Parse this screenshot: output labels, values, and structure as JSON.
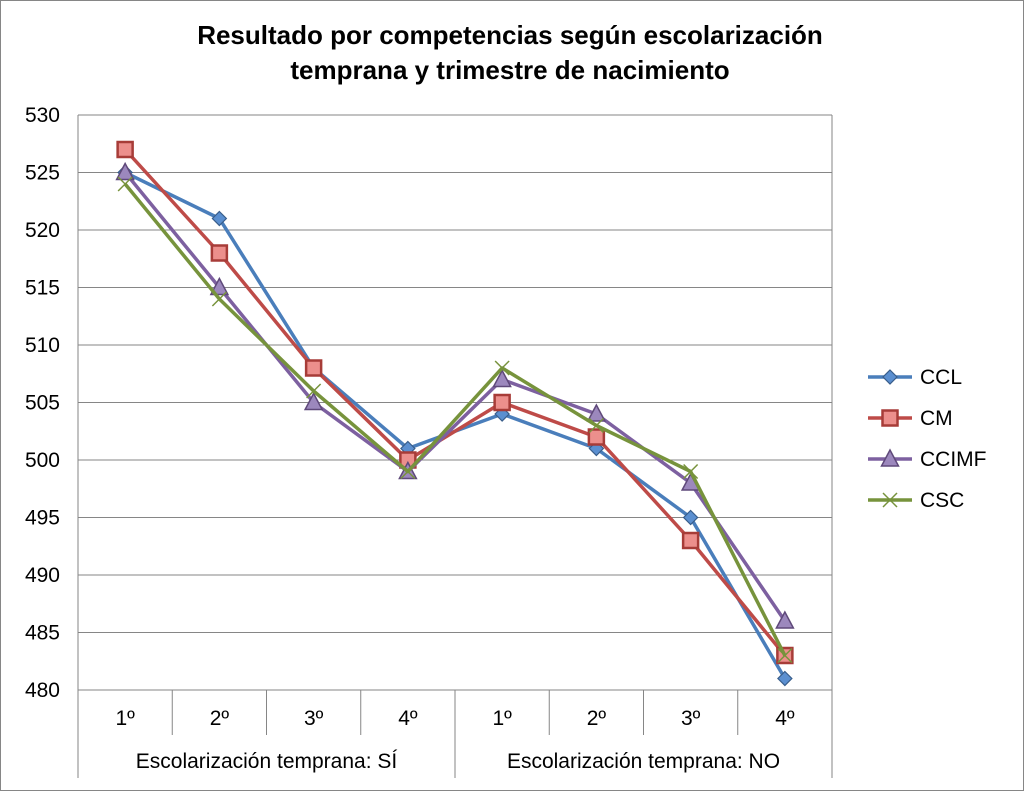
{
  "chart_data": {
    "type": "line",
    "title_lines": [
      "Resultado por competencias según escolarización",
      "temprana y trimestre  de nacimiento"
    ],
    "xlabel": "",
    "ylabel": "",
    "ylim": [
      480,
      530
    ],
    "y_ticks": [
      530,
      525,
      520,
      515,
      510,
      505,
      500,
      495,
      490,
      485,
      480
    ],
    "grid": true,
    "legend": "right",
    "categories": [
      "1º",
      "2º",
      "3º",
      "4º",
      "1º",
      "2º",
      "3º",
      "4º"
    ],
    "groups": [
      {
        "label": "Escolarización temprana: SÍ",
        "span": 4
      },
      {
        "label": "Escolarización temprana: NO",
        "span": 4
      }
    ],
    "series": [
      {
        "name": "CCL",
        "marker": "diamond",
        "color": "#4a7ebb",
        "values": [
          525,
          521,
          508,
          501,
          504,
          501,
          495,
          481
        ]
      },
      {
        "name": "CM",
        "marker": "square",
        "color": "#be4b48",
        "values": [
          527,
          518,
          508,
          500,
          505,
          502,
          493,
          483
        ]
      },
      {
        "name": "CCIMF",
        "marker": "triangle",
        "color": "#7d60a0",
        "values": [
          525,
          515,
          505,
          499,
          507,
          504,
          498,
          486
        ]
      },
      {
        "name": "CSC",
        "marker": "x",
        "color": "#77933c",
        "values": [
          524,
          514,
          506,
          499,
          508,
          503,
          499,
          483
        ]
      }
    ]
  }
}
